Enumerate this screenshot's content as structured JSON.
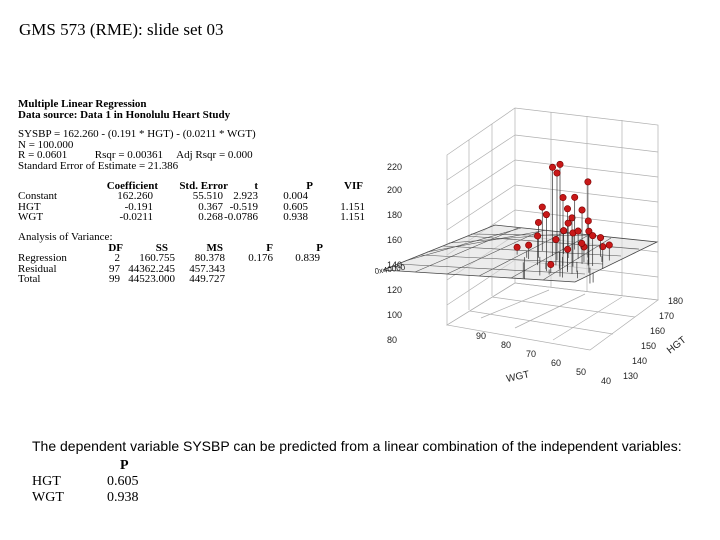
{
  "slide": {
    "title": "GMS 573 (RME): slide set 03"
  },
  "regression": {
    "heading": "Multiple Linear Regression",
    "source": "Data source: Data 1 in Honolulu Heart Study",
    "equation": "SYSBP = 162.260 - (0.191 * HGT) - (0.0211 * WGT)",
    "n_line": "N = 100.000",
    "r_line": "R = 0.0601          Rsqr = 0.00361     Adj Rsqr = 0.000",
    "se_line": "Standard Error of Estimate = 21.386",
    "coef_headers": [
      "Coefficient",
      "Std. Error",
      "t",
      "P",
      "VIF"
    ],
    "coef_rows": [
      {
        "name": "Constant",
        "coef": "162.260",
        "se": "55.510",
        "t": "2.923",
        "p": "0.004",
        "vif": ""
      },
      {
        "name": "HGT",
        "coef": "-0.191",
        "se": "0.367",
        "t": "-0.519",
        "p": "0.605",
        "vif": "1.151"
      },
      {
        "name": "WGT",
        "coef": "-0.0211",
        "se": "0.268",
        "t": "-0.0786",
        "p": "0.938",
        "vif": "1.151"
      }
    ],
    "anova_title": "Analysis of Variance:",
    "anova_headers": [
      "DF",
      "SS",
      "MS",
      "F",
      "P"
    ],
    "anova_rows": [
      {
        "name": "Regression",
        "df": "2",
        "ss": "160.755",
        "ms": "80.378",
        "f": "0.176",
        "p": "0.839"
      },
      {
        "name": "Residual",
        "df": "97",
        "ss": "44362.245",
        "ms": "457.343",
        "f": "",
        "p": ""
      },
      {
        "name": "Total",
        "df": "99",
        "ss": "44523.000",
        "ms": "449.727",
        "f": "",
        "p": ""
      }
    ]
  },
  "chart_data": {
    "type": "scatter",
    "title": "",
    "z_variable": "SYSBP",
    "x_label": "WGT",
    "y_label": "HGT",
    "z_ticks": [
      "80",
      "100",
      "120",
      "140",
      "160",
      "180",
      "200",
      "220"
    ],
    "wgt_ticks": [
      "40",
      "50",
      "60",
      "70",
      "80",
      "90"
    ],
    "hgt_ticks": [
      "130",
      "140",
      "150",
      "160",
      "170",
      "180"
    ],
    "plane_label": "0x40000",
    "points": [
      {
        "wgt": 60,
        "hgt": 160,
        "sysbp": 220
      },
      {
        "wgt": 65,
        "hgt": 155,
        "sysbp": 212
      },
      {
        "wgt": 62,
        "hgt": 158,
        "sysbp": 210
      },
      {
        "wgt": 70,
        "hgt": 165,
        "sysbp": 198
      },
      {
        "wgt": 58,
        "hgt": 162,
        "sysbp": 192
      },
      {
        "wgt": 55,
        "hgt": 165,
        "sysbp": 185
      },
      {
        "wgt": 50,
        "hgt": 160,
        "sysbp": 182
      },
      {
        "wgt": 52,
        "hgt": 168,
        "sysbp": 180
      },
      {
        "wgt": 75,
        "hgt": 158,
        "sysbp": 178
      },
      {
        "wgt": 68,
        "hgt": 150,
        "sysbp": 172
      },
      {
        "wgt": 72,
        "hgt": 162,
        "sysbp": 170
      },
      {
        "wgt": 64,
        "hgt": 168,
        "sysbp": 168
      },
      {
        "wgt": 56,
        "hgt": 172,
        "sysbp": 166
      },
      {
        "wgt": 61,
        "hgt": 152,
        "sysbp": 164
      },
      {
        "wgt": 66,
        "hgt": 160,
        "sysbp": 162
      },
      {
        "wgt": 59,
        "hgt": 165,
        "sysbp": 160
      },
      {
        "wgt": 54,
        "hgt": 155,
        "sysbp": 158
      },
      {
        "wgt": 63,
        "hgt": 170,
        "sysbp": 156
      },
      {
        "wgt": 67,
        "hgt": 163,
        "sysbp": 155
      },
      {
        "wgt": 57,
        "hgt": 160,
        "sysbp": 154
      },
      {
        "wgt": 69,
        "hgt": 157,
        "sysbp": 152
      },
      {
        "wgt": 53,
        "hgt": 166,
        "sysbp": 150
      },
      {
        "wgt": 62,
        "hgt": 174,
        "sysbp": 148
      },
      {
        "wgt": 73,
        "hgt": 168,
        "sysbp": 146
      },
      {
        "wgt": 58,
        "hgt": 150,
        "sysbp": 145
      },
      {
        "wgt": 65,
        "hgt": 166,
        "sysbp": 143
      },
      {
        "wgt": 71,
        "hgt": 172,
        "sysbp": 142
      },
      {
        "wgt": 60,
        "hgt": 145,
        "sysbp": 140
      },
      {
        "wgt": 49,
        "hgt": 162,
        "sysbp": 138
      },
      {
        "wgt": 76,
        "hgt": 160,
        "sysbp": 136
      }
    ],
    "residual_spikes": [
      {
        "wgt": 58,
        "hgt": 156,
        "sysbp": 125
      },
      {
        "wgt": 60,
        "hgt": 160,
        "sysbp": 118
      },
      {
        "wgt": 62,
        "hgt": 152,
        "sysbp": 115
      },
      {
        "wgt": 64,
        "hgt": 164,
        "sysbp": 120
      },
      {
        "wgt": 66,
        "hgt": 158,
        "sysbp": 112
      },
      {
        "wgt": 56,
        "hgt": 168,
        "sysbp": 122
      },
      {
        "wgt": 54,
        "hgt": 150,
        "sysbp": 118
      },
      {
        "wgt": 68,
        "hgt": 166,
        "sysbp": 124
      },
      {
        "wgt": 70,
        "hgt": 155,
        "sysbp": 116
      },
      {
        "wgt": 52,
        "hgt": 160,
        "sysbp": 126
      },
      {
        "wgt": 72,
        "hgt": 162,
        "sysbp": 121
      },
      {
        "wgt": 61,
        "hgt": 170,
        "sysbp": 114
      },
      {
        "wgt": 65,
        "hgt": 146,
        "sysbp": 127
      },
      {
        "wgt": 57,
        "hgt": 173,
        "sysbp": 119
      },
      {
        "wgt": 74,
        "hgt": 168,
        "sysbp": 123
      },
      {
        "wgt": 59,
        "hgt": 148,
        "sysbp": 113
      }
    ]
  },
  "conclusion": {
    "text": "The dependent variable SYSBP can be predicted from a linear combination of the independent variables:",
    "p_header": "P",
    "rows": [
      {
        "name": "HGT",
        "p": "0.605"
      },
      {
        "name": "WGT",
        "p": "0.938"
      }
    ]
  }
}
